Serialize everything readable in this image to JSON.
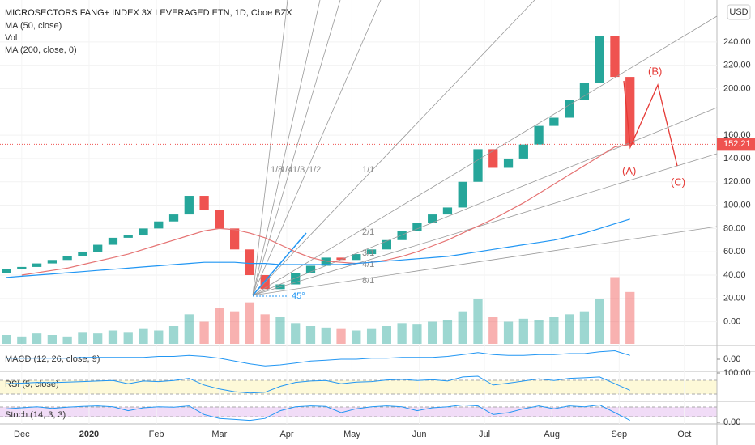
{
  "chart_data": {
    "type": "candlestick",
    "title": "MICROSECTORS FANG+ INDEX 3X LEVERAGED ETN, 1D, Cboe BZX",
    "currency": "USD",
    "last_price": 152.21,
    "x": [
      -7,
      0,
      7,
      14,
      21,
      28,
      35,
      42,
      49,
      56,
      63,
      70,
      77,
      84,
      91,
      98,
      105,
      112,
      119,
      126,
      133,
      140,
      147,
      154,
      161,
      168,
      175,
      182,
      189,
      196,
      203,
      210,
      217,
      224,
      231,
      238,
      245,
      252,
      259,
      266,
      273,
      280
    ],
    "open": [
      42,
      45,
      47,
      50,
      53,
      56,
      60,
      66,
      72,
      74,
      80,
      86,
      92,
      108,
      96,
      80,
      62,
      40,
      28,
      32,
      42,
      48,
      55,
      53,
      58,
      62,
      70,
      78,
      85,
      92,
      98,
      120,
      148,
      132,
      140,
      152,
      168,
      175,
      190,
      205,
      245,
      210
    ],
    "close": [
      45,
      47,
      50,
      53,
      56,
      60,
      66,
      72,
      74,
      80,
      86,
      92,
      108,
      96,
      80,
      62,
      40,
      28,
      32,
      42,
      48,
      55,
      53,
      58,
      62,
      70,
      78,
      85,
      92,
      98,
      120,
      148,
      132,
      140,
      152,
      168,
      175,
      190,
      205,
      245,
      210,
      152
    ],
    "series": [
      {
        "name": "MA (50, close)",
        "color": "#e57373",
        "values": [
          null,
          40,
          42,
          44,
          46,
          49,
          52,
          55,
          58,
          62,
          66,
          70,
          74,
          78,
          80,
          79,
          76,
          72,
          66,
          60,
          55,
          52,
          51,
          50,
          51,
          53,
          56,
          60,
          65,
          70,
          76,
          82,
          88,
          95,
          102,
          110,
          118,
          126,
          134,
          142,
          150,
          152
        ]
      },
      {
        "name": "MA (200, close, 0)",
        "color": "#2196f3",
        "values": [
          38,
          39,
          40,
          41,
          42,
          43,
          44,
          45,
          46,
          47,
          48,
          49,
          50,
          51,
          51,
          51,
          50,
          50,
          49,
          49,
          49,
          49,
          49,
          50,
          51,
          52,
          53,
          54,
          55,
          56,
          58,
          60,
          62,
          64,
          66,
          68,
          70,
          73,
          76,
          80,
          84,
          88
        ]
      }
    ],
    "volume_label": "Vol",
    "volume": [
      6,
      5,
      7,
      6,
      5,
      8,
      7,
      9,
      8,
      10,
      9,
      12,
      20,
      15,
      24,
      22,
      28,
      20,
      18,
      14,
      12,
      11,
      10,
      9,
      10,
      12,
      14,
      13,
      15,
      16,
      22,
      30,
      18,
      15,
      17,
      16,
      18,
      20,
      22,
      30,
      45,
      35
    ],
    "volume_lim": [
      0,
      60
    ],
    "macd_label": "MACD (12, 26, close, 9)",
    "macd": [
      1,
      1,
      1,
      1,
      1,
      2,
      2,
      2,
      2,
      2,
      3,
      3,
      4,
      3,
      1,
      -2,
      -5,
      -7,
      -6,
      -4,
      -2,
      -1,
      0,
      0,
      1,
      1,
      2,
      2,
      2,
      3,
      5,
      7,
      5,
      4,
      4,
      5,
      5,
      6,
      6,
      8,
      9,
      4
    ],
    "macd_lim": [
      -12,
      12
    ],
    "macd_ticks": [
      {
        "value": 0,
        "label": "0.00"
      }
    ],
    "rsi_label": "RSI (5, close)",
    "rsi": [
      60,
      62,
      65,
      64,
      66,
      68,
      70,
      72,
      60,
      70,
      68,
      72,
      80,
      55,
      40,
      30,
      25,
      28,
      50,
      65,
      70,
      72,
      60,
      66,
      68,
      74,
      76,
      72,
      75,
      70,
      85,
      88,
      55,
      62,
      70,
      78,
      72,
      80,
      82,
      85,
      60,
      35
    ],
    "rsi_lim": [
      0,
      100
    ],
    "rsi_ticks": [
      {
        "value": 100,
        "label": "100.00"
      }
    ],
    "stoch_label": "Stoch (14, 3, 3)",
    "stoch": [
      70,
      75,
      80,
      72,
      78,
      82,
      85,
      80,
      60,
      75,
      80,
      78,
      85,
      40,
      20,
      15,
      10,
      20,
      60,
      80,
      85,
      82,
      50,
      70,
      80,
      85,
      80,
      60,
      75,
      80,
      90,
      85,
      40,
      50,
      70,
      85,
      70,
      85,
      80,
      90,
      50,
      10
    ],
    "stoch_lim": [
      0,
      100
    ],
    "stoch_ticks": [
      {
        "value": 0,
        "label": "0.00"
      }
    ],
    "ylim": [
      -19,
      276
    ],
    "yticks": [
      {
        "value": 0,
        "label": "0.00"
      },
      {
        "value": 20,
        "label": "20.00"
      },
      {
        "value": 40,
        "label": "40.00"
      },
      {
        "value": 60,
        "label": "60.00"
      },
      {
        "value": 80,
        "label": "80.00"
      },
      {
        "value": 100,
        "label": "100.00"
      },
      {
        "value": 120,
        "label": "120.00"
      },
      {
        "value": 140,
        "label": "140.00"
      },
      {
        "value": 160,
        "label": "160.00"
      },
      {
        "value": 200,
        "label": "200.00"
      },
      {
        "value": 220,
        "label": "220.00"
      },
      {
        "value": 240,
        "label": "240.00"
      }
    ],
    "xlim": [
      -10,
      320
    ],
    "xticks": [
      {
        "value": 0,
        "label": "Dec"
      },
      {
        "value": 31,
        "label": "2020"
      },
      {
        "value": 62,
        "label": "Feb"
      },
      {
        "value": 91,
        "label": "Mar"
      },
      {
        "value": 122,
        "label": "Apr"
      },
      {
        "value": 152,
        "label": "May"
      },
      {
        "value": 183,
        "label": "Jun"
      },
      {
        "value": 213,
        "label": "Jul"
      },
      {
        "value": 244,
        "label": "Aug"
      },
      {
        "value": 275,
        "label": "Sep"
      },
      {
        "value": 305,
        "label": "Oct"
      }
    ],
    "annotations": [
      "1/8",
      "1/4",
      "1/3",
      "1/2",
      "1/1",
      "2/1",
      "3/1",
      "4/1",
      "8/1",
      "45°",
      "(A)",
      "(B)",
      "(C)"
    ],
    "up_color": "#26a69a",
    "down_color": "#ef5350"
  }
}
